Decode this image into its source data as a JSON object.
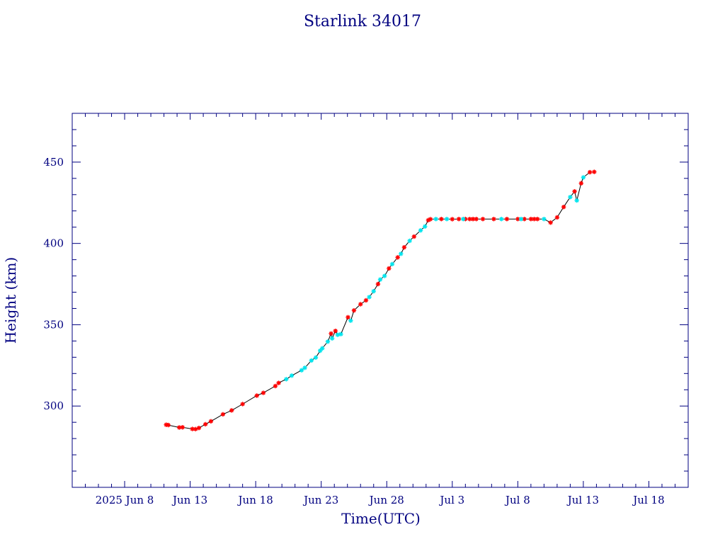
{
  "chart_data": {
    "type": "scatter",
    "title": "Starlink 34017",
    "xlabel": "Time(UTC)",
    "ylabel": "Height (km)",
    "x_unit": "date (UTC)",
    "xlim": [
      "2025-06-04",
      "2025-07-21"
    ],
    "ylim": [
      250,
      480
    ],
    "x_ticks": [
      {
        "date": "2025-06-08",
        "label": "2025 Jun  8"
      },
      {
        "date": "2025-06-13",
        "label": "Jun 13"
      },
      {
        "date": "2025-06-18",
        "label": "Jun 18"
      },
      {
        "date": "2025-06-23",
        "label": "Jun 23"
      },
      {
        "date": "2025-06-28",
        "label": "Jun 28"
      },
      {
        "date": "2025-07-03",
        "label": "Jul  3"
      },
      {
        "date": "2025-07-08",
        "label": "Jul  8"
      },
      {
        "date": "2025-07-13",
        "label": "Jul 13"
      },
      {
        "date": "2025-07-18",
        "label": "Jul 18"
      }
    ],
    "y_ticks": [
      300,
      350,
      400,
      450
    ],
    "grid": false,
    "colors": {
      "axes": "#000080",
      "line": "#000000",
      "series_red": "#ff0000",
      "series_cyan": "#00e5ee"
    },
    "series": [
      {
        "marker": "*",
        "color": "#ff0000",
        "points": [
          [
            "2025-06-11 04:00",
            288.5
          ],
          [
            "2025-06-11 08:00",
            288.3
          ],
          [
            "2025-06-12 04:00",
            286.8
          ],
          [
            "2025-06-12 10:00",
            286.9
          ],
          [
            "2025-06-13 04:00",
            285.9
          ],
          [
            "2025-06-13 10:00",
            285.8
          ],
          [
            "2025-06-13 16:00",
            286.5
          ],
          [
            "2025-06-14 04:00",
            288.8
          ],
          [
            "2025-06-14 14:00",
            290.6
          ],
          [
            "2025-06-15 12:00",
            294.9
          ],
          [
            "2025-06-16 04:00",
            297.3
          ],
          [
            "2025-06-17 00:00",
            301.2
          ],
          [
            "2025-06-18 02:00",
            306.4
          ],
          [
            "2025-06-18 14:00",
            308.1
          ],
          [
            "2025-06-19 12:00",
            312.3
          ],
          [
            "2025-06-19 18:00",
            314.2
          ],
          [
            "2025-06-23 18:00",
            344.6
          ],
          [
            "2025-06-24 02:00",
            346.2
          ],
          [
            "2025-06-25 01:00",
            354.6
          ],
          [
            "2025-06-25 12:00",
            358.8
          ],
          [
            "2025-06-26 00:00",
            362.6
          ],
          [
            "2025-06-26 10:00",
            365.0
          ],
          [
            "2025-06-27 08:00",
            375.0
          ],
          [
            "2025-06-28 04:00",
            384.6
          ],
          [
            "2025-06-28 20:00",
            391.4
          ],
          [
            "2025-06-29 08:00",
            397.6
          ],
          [
            "2025-06-30 02:00",
            404.2
          ],
          [
            "2025-07-01 04:00",
            414.3
          ],
          [
            "2025-07-01 08:00",
            414.9
          ],
          [
            "2025-07-02 04:00",
            415.0
          ],
          [
            "2025-07-03 00:00",
            414.9
          ],
          [
            "2025-07-03 12:00",
            415.0
          ],
          [
            "2025-07-04 00:00",
            415.0
          ],
          [
            "2025-07-04 08:00",
            415.0
          ],
          [
            "2025-07-04 14:00",
            415.0
          ],
          [
            "2025-07-04 20:00",
            415.0
          ],
          [
            "2025-07-05 08:00",
            415.0
          ],
          [
            "2025-07-06 04:00",
            415.0
          ],
          [
            "2025-07-07 04:00",
            415.0
          ],
          [
            "2025-07-08 00:00",
            415.0
          ],
          [
            "2025-07-08 12:00",
            415.0
          ],
          [
            "2025-07-09 00:00",
            415.0
          ],
          [
            "2025-07-09 06:00",
            415.0
          ],
          [
            "2025-07-09 12:00",
            415.0
          ],
          [
            "2025-07-10 12:00",
            412.8
          ],
          [
            "2025-07-11 00:00",
            416.0
          ],
          [
            "2025-07-11 12:00",
            422.4
          ],
          [
            "2025-07-12 08:00",
            432.0
          ],
          [
            "2025-07-12 20:00",
            437.0
          ],
          [
            "2025-07-13 12:00",
            443.8
          ],
          [
            "2025-07-13 20:00",
            444.0
          ]
        ]
      },
      {
        "marker": "*",
        "color": "#00e5ee",
        "points": [
          [
            "2025-06-20 08:00",
            316.5
          ],
          [
            "2025-06-20 18:00",
            318.7
          ],
          [
            "2025-06-21 12:00",
            322.0
          ],
          [
            "2025-06-21 18:00",
            323.5
          ],
          [
            "2025-06-22 06:00",
            328.0
          ],
          [
            "2025-06-22 14:00",
            329.8
          ],
          [
            "2025-06-22 22:00",
            334.0
          ],
          [
            "2025-06-23 02:00",
            335.5
          ],
          [
            "2025-06-23 12:00",
            339.6
          ],
          [
            "2025-06-23 20:00",
            341.6
          ],
          [
            "2025-06-24 06:00",
            343.8
          ],
          [
            "2025-06-24 12:00",
            344.2
          ],
          [
            "2025-06-25 06:00",
            352.5
          ],
          [
            "2025-06-26 16:00",
            367.0
          ],
          [
            "2025-06-27 00:00",
            370.6
          ],
          [
            "2025-06-27 12:00",
            377.8
          ],
          [
            "2025-06-27 20:00",
            380.0
          ],
          [
            "2025-06-28 10:00",
            387.3
          ],
          [
            "2025-06-29 02:00",
            393.6
          ],
          [
            "2025-06-29 18:00",
            401.6
          ],
          [
            "2025-06-30 14:00",
            408.0
          ],
          [
            "2025-06-30 22:00",
            410.4
          ],
          [
            "2025-07-01 18:00",
            415.0
          ],
          [
            "2025-07-02 14:00",
            415.0
          ],
          [
            "2025-07-03 20:00",
            415.0
          ],
          [
            "2025-07-06 18:00",
            415.0
          ],
          [
            "2025-07-08 06:00",
            415.0
          ],
          [
            "2025-07-10 00:00",
            415.0
          ],
          [
            "2025-07-12 00:00",
            428.5
          ],
          [
            "2025-07-12 12:00",
            426.4
          ],
          [
            "2025-07-13 00:00",
            440.6
          ]
        ]
      }
    ]
  }
}
